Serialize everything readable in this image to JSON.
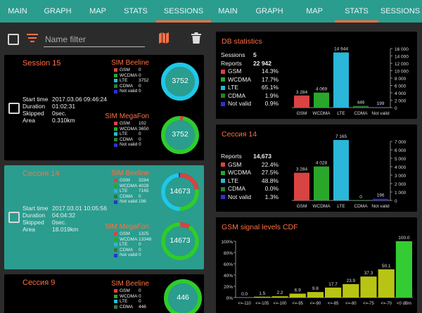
{
  "colors": {
    "accent": "#ff7043",
    "teal": "#2a9d8f",
    "gsm": "#d84343",
    "wcdma": "#2aa72a",
    "lte": "#2ab7d8",
    "cdma": "#2e7d32",
    "notvalid": "#2f2fd2",
    "ring_cyan": "#1ec8e8",
    "ring_green": "#2ecc2e",
    "cdf_yellow": "#b8c414",
    "cdf_green": "#33cc33"
  },
  "icons": {
    "filter": "filter-icon",
    "map": "map-icon",
    "trash": "trash-icon",
    "checkbox": "checkbox-icon"
  },
  "left": {
    "tabs": [
      {
        "label": "MAIN",
        "active": false
      },
      {
        "label": "GRAPH",
        "active": false
      },
      {
        "label": "MAP",
        "active": false
      },
      {
        "label": "STATS",
        "active": false
      },
      {
        "label": "SESSIONS",
        "active": true
      }
    ],
    "filter_placeholder": "Name filter",
    "sessions": [
      {
        "title": "Session 15",
        "info": [
          [
            "Start time",
            "2017.03.06 09:46:24"
          ],
          [
            "Duration",
            "01:02:31"
          ],
          [
            "Skipped",
            "0sec."
          ],
          [
            "Area",
            "0.310km"
          ]
        ],
        "sims": [
          {
            "name": "SIM Beeline",
            "rows": [
              [
                "GSM",
                "0"
              ],
              [
                "WCDMA",
                "0"
              ],
              [
                "LTE",
                "3752"
              ],
              [
                "CDMA",
                "0"
              ],
              [
                "Not valid",
                "0"
              ]
            ],
            "total": "3752"
          },
          {
            "name": "SIM MegaFon",
            "rows": [
              [
                "GSM",
                "102"
              ],
              [
                "WCDMA",
                "3650"
              ],
              [
                "LTE",
                "0"
              ],
              [
                "CDMA",
                "0"
              ],
              [
                "Not valid",
                "0"
              ]
            ],
            "total": "3752"
          }
        ]
      },
      {
        "title": "Сессия 14",
        "info": [
          [
            "Start time",
            "2017.03.01 10:05:56"
          ],
          [
            "Duration",
            "04:04:32"
          ],
          [
            "Skipped",
            "0sec."
          ],
          [
            "Area",
            "18.019km"
          ]
        ],
        "sims": [
          {
            "name": "SIM Beeline",
            "rows": [
              [
                "GSM",
                "3284"
              ],
              [
                "WCDMA",
                "4028"
              ],
              [
                "LTE",
                "7165"
              ],
              [
                "CDMA",
                "0"
              ],
              [
                "Not valid",
                "196"
              ]
            ],
            "total": "14673"
          },
          {
            "name": "SIM MegaFon",
            "rows": [
              [
                "GSM",
                "1325"
              ],
              [
                "WCDMA",
                "13348"
              ],
              [
                "LTE",
                "0"
              ],
              [
                "CDMA",
                "0"
              ],
              [
                "Not valid",
                "0"
              ]
            ],
            "total": "14673"
          }
        ]
      },
      {
        "title": "Сессия 9",
        "sims": [
          {
            "name": "SIM Beeline",
            "rows": [
              [
                "GSM",
                "0"
              ],
              [
                "WCDMA",
                "0"
              ],
              [
                "LTE",
                "0"
              ],
              [
                "CDMA",
                "446"
              ]
            ],
            "total": "446"
          }
        ]
      }
    ]
  },
  "right": {
    "tabs": [
      {
        "label": "MAIN",
        "active": false
      },
      {
        "label": "GRAPH",
        "active": false
      },
      {
        "label": "MAP",
        "active": false
      },
      {
        "label": "STATS",
        "active": true
      },
      {
        "label": "SESSIONS",
        "active": false
      }
    ],
    "db": {
      "title": "DB statistics",
      "sessions_label": "Sessions",
      "sessions": "5",
      "reports_label": "Reports",
      "reports": "22 942",
      "rows": [
        [
          "GSM",
          "14.3%"
        ],
        [
          "WCDMA",
          "17.7%"
        ],
        [
          "LTE",
          "65.1%"
        ],
        [
          "CDMA",
          "1.9%"
        ],
        [
          "Not valid",
          "0.9%"
        ]
      ]
    },
    "s14": {
      "title": "Сессия 14",
      "reports_label": "Reports",
      "reports": "14,673",
      "rows": [
        [
          "GSM",
          "22.4%"
        ],
        [
          "WCDMA",
          "27.5%"
        ],
        [
          "LTE",
          "48.8%"
        ],
        [
          "CDMA",
          "0.0%"
        ],
        [
          "Not valid",
          "1.3%"
        ]
      ]
    },
    "cdf_title": "GSM signal levels CDF"
  },
  "chart_data": [
    {
      "type": "bar",
      "categories": [
        "GSM",
        "WCDMA",
        "LTE",
        "CDMA",
        "Not valid"
      ],
      "values": [
        3284,
        4069,
        14944,
        446,
        199
      ],
      "labels": [
        "3 284",
        "4 069",
        "14 944",
        "446",
        "199"
      ],
      "ylim": [
        0,
        16000
      ],
      "yticks": [
        "0",
        "2 000",
        "4 000",
        "6 000",
        "8 000",
        "10 000",
        "12 000",
        "14 000",
        "16 000"
      ],
      "axis": "right"
    },
    {
      "type": "bar",
      "categories": [
        "GSM",
        "WCDMA",
        "LTE",
        "CDMA",
        "Not valid"
      ],
      "values": [
        3284,
        4028,
        7165,
        0,
        196
      ],
      "labels": [
        "3 284",
        "4 028",
        "7 165",
        "0",
        "196"
      ],
      "ylim": [
        0,
        7000
      ],
      "yticks": [
        "0",
        "1 000",
        "2 000",
        "3 000",
        "4 000",
        "5 000",
        "6 000",
        "7 000"
      ],
      "axis": "right"
    },
    {
      "type": "bar",
      "title": "GSM signal levels CDF",
      "categories": [
        "<=-110",
        "<=-105",
        "<=-100",
        "<=-95",
        "<=-90",
        "<=-85",
        "<=-80",
        "<=-75",
        "<=-70",
        "<0 dBm"
      ],
      "values": [
        0.0,
        1.5,
        2.2,
        6.9,
        9.8,
        17.7,
        23.9,
        37.3,
        50.1,
        100.0
      ],
      "labels": [
        "0.0",
        "1.5",
        "2.2",
        "6.9",
        "9.8",
        "17.7",
        "23.9",
        "37.3",
        "50.1",
        "100.0"
      ],
      "ylim": [
        0,
        100
      ],
      "yticks": [
        "0%",
        "20%",
        "40%",
        "60%",
        "80%",
        "100%"
      ],
      "axis": "left"
    }
  ]
}
